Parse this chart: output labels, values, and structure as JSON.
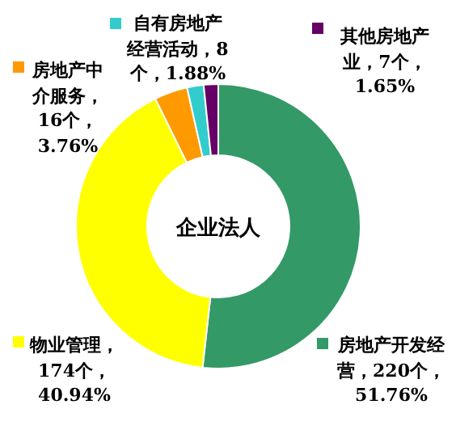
{
  "chart_data": {
    "type": "donut",
    "title": "企业法人",
    "categories": [
      "房地产开发经营",
      "物业管理",
      "房地产中介服务",
      "自有房地产经营活动",
      "其他房地产业"
    ],
    "values": [
      220,
      174,
      16,
      8,
      7
    ],
    "value_labels": [
      "，220个，51.76%",
      "，174个，40.94%",
      "，16个，3.76%",
      "，8个，1.88%",
      "，7个，1.65%"
    ],
    "colors": [
      "#339966",
      "#ffff00",
      "#ff9900",
      "#33cccc",
      "#660066"
    ],
    "legend": "top"
  }
}
